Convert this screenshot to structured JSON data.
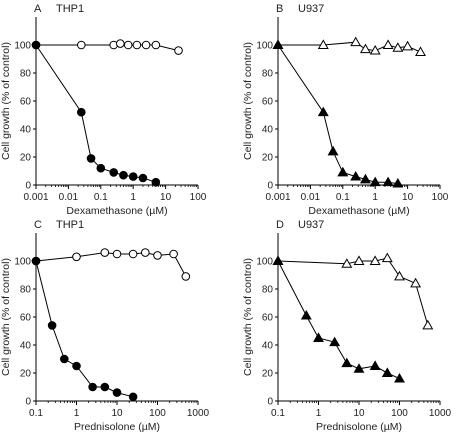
{
  "figure": {
    "y_axis_label": "Cell growth (% of control)"
  },
  "chart_data": [
    {
      "type": "line",
      "panel_letter": "A",
      "title": "THP1",
      "xlabel": "Dexamethasone (µM)",
      "ylabel": "Cell growth (% of control)",
      "x_scale": "log",
      "xlim": [
        0.001,
        100
      ],
      "ylim": [
        0,
        120
      ],
      "x_ticks": [
        0.001,
        0.01,
        0.1,
        1,
        10,
        100
      ],
      "x_tick_labels": [
        "0.001",
        "0.01",
        "0.1",
        "1",
        "10",
        "100"
      ],
      "y_ticks": [
        0,
        20,
        40,
        60,
        80,
        100
      ],
      "y_tick_labels": [
        "0",
        "20",
        "40",
        "60",
        "80",
        "100"
      ],
      "series": [
        {
          "marker": "open-circle",
          "connected": true,
          "color": "#000000",
          "x": [
            0.001,
            0.025,
            0.25,
            0.4,
            0.7,
            1.3,
            2.5,
            5,
            25
          ],
          "y": [
            100,
            100,
            100,
            101,
            100,
            100,
            100,
            100,
            96
          ]
        },
        {
          "marker": "filled-circle",
          "connected": true,
          "color": "#000000",
          "x": [
            0.001,
            0.025,
            0.05,
            0.1,
            0.25,
            0.5,
            1,
            2,
            5
          ],
          "y": [
            100,
            52,
            19,
            12,
            9,
            7,
            6,
            5,
            2
          ]
        }
      ]
    },
    {
      "type": "line",
      "panel_letter": "B",
      "title": "U937",
      "xlabel": "Dexamethasone (µM)",
      "ylabel": "Cell growth (% of control)",
      "x_scale": "log",
      "xlim": [
        0.001,
        100
      ],
      "ylim": [
        0,
        120
      ],
      "x_ticks": [
        0.001,
        0.01,
        0.1,
        1,
        10,
        100
      ],
      "x_tick_labels": [
        "0.001",
        "0.01",
        "0.1",
        "1",
        "10",
        "100"
      ],
      "y_ticks": [
        0,
        20,
        40,
        60,
        80,
        100
      ],
      "y_tick_labels": [
        "0",
        "20",
        "40",
        "60",
        "80",
        "100"
      ],
      "series": [
        {
          "marker": "open-triangle",
          "connected": true,
          "color": "#000000",
          "x": [
            0.001,
            0.025,
            0.25,
            0.5,
            1,
            2.5,
            5,
            10,
            25
          ],
          "y": [
            100,
            100,
            102,
            97,
            96,
            100,
            98,
            99,
            95
          ]
        },
        {
          "marker": "filled-triangle",
          "connected": true,
          "color": "#000000",
          "x": [
            0.001,
            0.025,
            0.05,
            0.1,
            0.25,
            0.5,
            1,
            2.5,
            5
          ],
          "y": [
            100,
            52,
            24,
            9,
            6,
            4,
            2,
            2,
            1
          ]
        }
      ]
    },
    {
      "type": "line",
      "panel_letter": "C",
      "title": "THP1",
      "xlabel": "Prednisolone (µM)",
      "ylabel": "Cell growth (% of control)",
      "x_scale": "log",
      "xlim": [
        0.1,
        1000
      ],
      "ylim": [
        0,
        120
      ],
      "x_ticks": [
        0.1,
        1,
        10,
        100,
        1000
      ],
      "x_tick_labels": [
        "0.1",
        "1",
        "10",
        "100",
        "1000"
      ],
      "y_ticks": [
        0,
        20,
        40,
        60,
        80,
        100
      ],
      "y_tick_labels": [
        "0",
        "20",
        "40",
        "60",
        "80",
        "100"
      ],
      "series": [
        {
          "marker": "open-circle",
          "connected": true,
          "color": "#000000",
          "x": [
            0.1,
            1,
            5,
            10,
            25,
            50,
            100,
            250,
            500
          ],
          "y": [
            100,
            103,
            106,
            105,
            105,
            106,
            104,
            105,
            89
          ]
        },
        {
          "marker": "filled-circle",
          "connected": true,
          "color": "#000000",
          "x": [
            0.1,
            0.25,
            0.5,
            1,
            2.5,
            5,
            10,
            25
          ],
          "y": [
            100,
            54,
            30,
            25,
            10,
            10,
            6,
            3
          ]
        }
      ]
    },
    {
      "type": "line",
      "panel_letter": "D",
      "title": "U937",
      "xlabel": "Prednisolone (µM)",
      "ylabel": "Cell growth (% of control)",
      "x_scale": "log",
      "xlim": [
        0.1,
        1000
      ],
      "ylim": [
        0,
        120
      ],
      "x_ticks": [
        0.1,
        1,
        10,
        100,
        1000
      ],
      "x_tick_labels": [
        "0.1",
        "1",
        "10",
        "100",
        "1000"
      ],
      "y_ticks": [
        0,
        20,
        40,
        60,
        80,
        100
      ],
      "y_tick_labels": [
        "0",
        "20",
        "40",
        "60",
        "80",
        "100"
      ],
      "series": [
        {
          "marker": "open-triangle",
          "connected": true,
          "color": "#000000",
          "x": [
            0.1,
            5,
            10,
            25,
            50,
            100,
            250,
            500
          ],
          "y": [
            100,
            98,
            100,
            100,
            102,
            89,
            84,
            54
          ]
        },
        {
          "marker": "filled-triangle",
          "connected": true,
          "color": "#000000",
          "x": [
            0.1,
            0.5,
            1,
            2.5,
            5,
            10,
            25,
            50,
            100
          ],
          "y": [
            100,
            61,
            45,
            42,
            27,
            23,
            25,
            20,
            16
          ]
        }
      ]
    }
  ]
}
